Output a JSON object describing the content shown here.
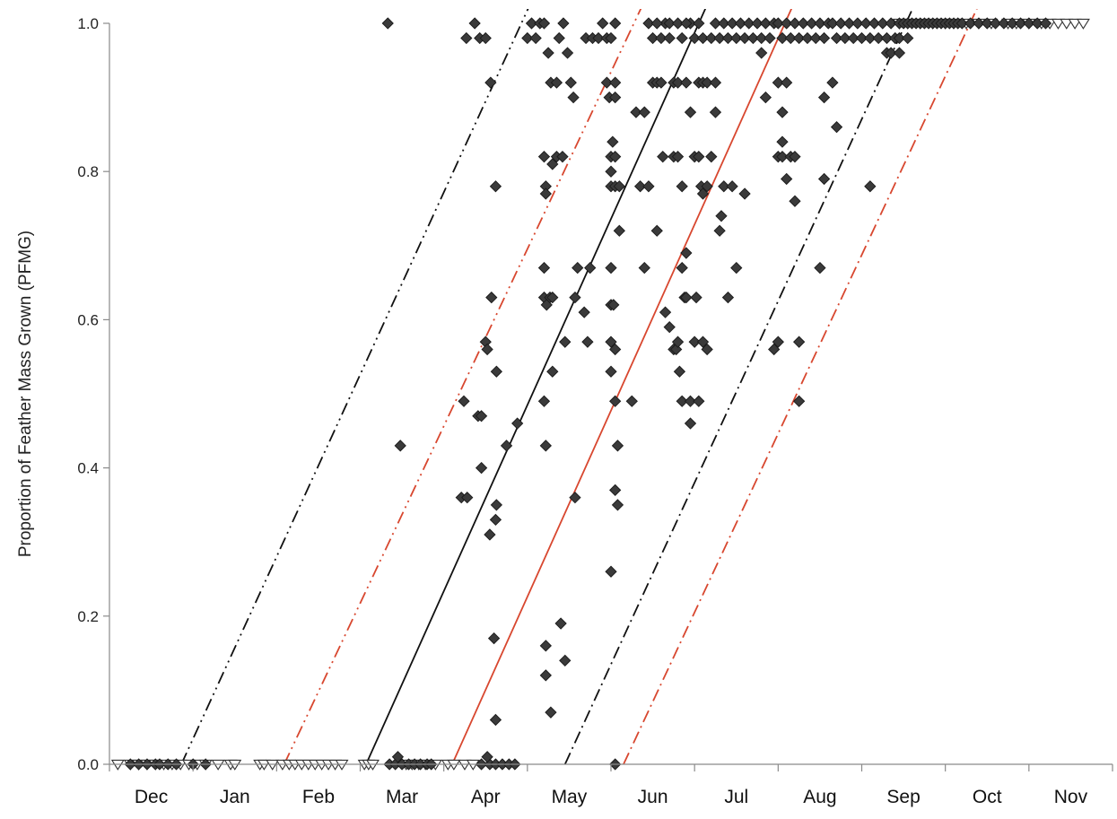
{
  "chart_data": {
    "type": "scatter",
    "title": "",
    "xlabel": "",
    "ylabel": "Proportion of Feather Mass Grown (PFMG)",
    "x_unit": "month",
    "month_range": [
      "Dec",
      "Nov"
    ],
    "categories": [
      "Dec",
      "Jan",
      "Feb",
      "Mar",
      "Apr",
      "May",
      "Jun",
      "Jul",
      "Aug",
      "Sep",
      "Oct",
      "Nov"
    ],
    "ylim": [
      0,
      1.0
    ],
    "yticks": [
      "0.0",
      "0.2",
      "0.4",
      "0.6",
      "0.8",
      "1.0"
    ],
    "grid": false,
    "legend": "none",
    "colors": {
      "black_line": "#111111",
      "red_line": "#d8472f",
      "diamond_fill": "#3a3a3a",
      "triangle_fill": "#ffffff",
      "axis": "#8a8a8a"
    },
    "lines": [
      {
        "color": "black",
        "style": "solid",
        "x": [
          3.07,
          7.17
        ],
        "y": [
          0.0,
          1.03
        ]
      },
      {
        "color": "red",
        "style": "solid",
        "x": [
          4.1,
          8.2
        ],
        "y": [
          0.0,
          1.03
        ]
      },
      {
        "color": "black",
        "style": "dash-dot-dot",
        "x": [
          0.86,
          5.05
        ],
        "y": [
          0.0,
          1.03
        ]
      },
      {
        "color": "red",
        "style": "dash-dot-dot",
        "x": [
          2.09,
          6.4
        ],
        "y": [
          0.0,
          1.03
        ]
      },
      {
        "color": "black",
        "style": "dash-dot",
        "x": [
          5.45,
          9.65
        ],
        "y": [
          0.0,
          1.03
        ]
      },
      {
        "color": "red",
        "style": "dash-dot",
        "x": [
          6.15,
          10.42
        ],
        "y": [
          0.0,
          1.03
        ]
      }
    ],
    "triangles_y0": [
      0.1,
      0.25,
      0.35,
      0.45,
      0.55,
      0.65,
      0.75,
      0.85,
      0.95,
      1.05,
      1.15,
      1.3,
      1.45,
      1.5,
      1.8,
      1.85,
      1.95,
      2.07,
      2.15,
      2.22,
      2.3,
      2.38,
      2.46,
      2.54,
      2.62,
      2.7,
      2.78,
      3.05,
      3.1,
      3.15,
      3.55,
      3.62,
      3.7,
      3.78,
      3.9,
      4.05,
      4.12,
      4.25,
      4.35
    ],
    "triangles_y1": [
      9.45,
      9.55,
      9.7,
      9.85,
      10.0,
      10.1,
      10.25,
      10.4,
      10.55,
      10.75,
      10.85,
      11.0,
      11.15,
      11.25,
      11.35,
      11.45,
      11.55,
      11.65
    ],
    "diamonds": [
      {
        "x": 0.25,
        "y": 0
      },
      {
        "x": 0.35,
        "y": 0
      },
      {
        "x": 0.45,
        "y": 0
      },
      {
        "x": 0.55,
        "y": 0
      },
      {
        "x": 0.6,
        "y": 0
      },
      {
        "x": 0.7,
        "y": 0
      },
      {
        "x": 0.8,
        "y": 0
      },
      {
        "x": 1.0,
        "y": 0
      },
      {
        "x": 1.15,
        "y": 0
      },
      {
        "x": 3.35,
        "y": 0
      },
      {
        "x": 3.42,
        "y": 0
      },
      {
        "x": 3.5,
        "y": 0
      },
      {
        "x": 3.58,
        "y": 0
      },
      {
        "x": 3.65,
        "y": 0
      },
      {
        "x": 3.72,
        "y": 0
      },
      {
        "x": 3.8,
        "y": 0
      },
      {
        "x": 3.85,
        "y": 0
      },
      {
        "x": 3.45,
        "y": 0.01
      },
      {
        "x": 4.45,
        "y": 0
      },
      {
        "x": 4.55,
        "y": 0
      },
      {
        "x": 4.62,
        "y": 0
      },
      {
        "x": 4.7,
        "y": 0
      },
      {
        "x": 4.78,
        "y": 0
      },
      {
        "x": 4.85,
        "y": 0
      },
      {
        "x": 4.52,
        "y": 0.01
      },
      {
        "x": 6.05,
        "y": 0
      },
      {
        "x": 3.33,
        "y": 1.0
      },
      {
        "x": 3.48,
        "y": 0.43
      },
      {
        "x": 4.21,
        "y": 0.36
      },
      {
        "x": 4.28,
        "y": 0.36
      },
      {
        "x": 4.24,
        "y": 0.49
      },
      {
        "x": 4.41,
        "y": 0.47
      },
      {
        "x": 4.45,
        "y": 0.47
      },
      {
        "x": 4.45,
        "y": 0.4
      },
      {
        "x": 4.55,
        "y": 0.31
      },
      {
        "x": 4.62,
        "y": 0.33
      },
      {
        "x": 4.63,
        "y": 0.35
      },
      {
        "x": 4.6,
        "y": 0.17
      },
      {
        "x": 4.62,
        "y": 0.06
      },
      {
        "x": 4.5,
        "y": 0.57
      },
      {
        "x": 4.52,
        "y": 0.56
      },
      {
        "x": 4.57,
        "y": 0.63
      },
      {
        "x": 4.63,
        "y": 0.53
      },
      {
        "x": 4.27,
        "y": 0.98
      },
      {
        "x": 4.37,
        "y": 1.0
      },
      {
        "x": 4.43,
        "y": 0.98
      },
      {
        "x": 4.5,
        "y": 0.98
      },
      {
        "x": 4.56,
        "y": 0.92
      },
      {
        "x": 4.62,
        "y": 0.78
      },
      {
        "x": 4.75,
        "y": 0.43
      },
      {
        "x": 4.88,
        "y": 0.46
      },
      {
        "x": 5.0,
        "y": 0.98
      },
      {
        "x": 5.05,
        "y": 1.0
      },
      {
        "x": 5.1,
        "y": 0.98
      },
      {
        "x": 5.15,
        "y": 1.0
      },
      {
        "x": 5.2,
        "y": 1.0
      },
      {
        "x": 5.25,
        "y": 0.96
      },
      {
        "x": 5.28,
        "y": 0.92
      },
      {
        "x": 5.35,
        "y": 0.92
      },
      {
        "x": 5.38,
        "y": 0.98
      },
      {
        "x": 5.43,
        "y": 1.0
      },
      {
        "x": 5.48,
        "y": 0.96
      },
      {
        "x": 5.52,
        "y": 0.92
      },
      {
        "x": 5.55,
        "y": 0.9
      },
      {
        "x": 5.2,
        "y": 0.82
      },
      {
        "x": 5.3,
        "y": 0.81
      },
      {
        "x": 5.35,
        "y": 0.82
      },
      {
        "x": 5.42,
        "y": 0.82
      },
      {
        "x": 5.22,
        "y": 0.78
      },
      {
        "x": 5.22,
        "y": 0.77
      },
      {
        "x": 5.2,
        "y": 0.67
      },
      {
        "x": 5.2,
        "y": 0.63
      },
      {
        "x": 5.23,
        "y": 0.62
      },
      {
        "x": 5.27,
        "y": 0.63
      },
      {
        "x": 5.3,
        "y": 0.63
      },
      {
        "x": 5.2,
        "y": 0.49
      },
      {
        "x": 5.22,
        "y": 0.43
      },
      {
        "x": 5.3,
        "y": 0.53
      },
      {
        "x": 5.45,
        "y": 0.57
      },
      {
        "x": 5.57,
        "y": 0.63
      },
      {
        "x": 5.6,
        "y": 0.67
      },
      {
        "x": 5.75,
        "y": 0.67
      },
      {
        "x": 5.72,
        "y": 0.57
      },
      {
        "x": 5.68,
        "y": 0.61
      },
      {
        "x": 5.57,
        "y": 0.36
      },
      {
        "x": 5.4,
        "y": 0.19
      },
      {
        "x": 5.22,
        "y": 0.16
      },
      {
        "x": 5.22,
        "y": 0.12
      },
      {
        "x": 5.28,
        "y": 0.07
      },
      {
        "x": 5.45,
        "y": 0.14
      },
      {
        "x": 5.7,
        "y": 0.98
      },
      {
        "x": 5.78,
        "y": 0.98
      },
      {
        "x": 5.85,
        "y": 0.98
      },
      {
        "x": 5.9,
        "y": 1.0
      },
      {
        "x": 5.95,
        "y": 0.98
      },
      {
        "x": 5.95,
        "y": 0.92
      },
      {
        "x": 5.98,
        "y": 0.9
      },
      {
        "x": 6.0,
        "y": 0.98
      },
      {
        "x": 6.05,
        "y": 1.0
      },
      {
        "x": 6.05,
        "y": 0.92
      },
      {
        "x": 6.05,
        "y": 0.9
      },
      {
        "x": 6.02,
        "y": 0.84
      },
      {
        "x": 6.0,
        "y": 0.82
      },
      {
        "x": 6.05,
        "y": 0.82
      },
      {
        "x": 6.0,
        "y": 0.8
      },
      {
        "x": 6.0,
        "y": 0.78
      },
      {
        "x": 6.05,
        "y": 0.78
      },
      {
        "x": 6.1,
        "y": 0.78
      },
      {
        "x": 6.1,
        "y": 0.72
      },
      {
        "x": 6.0,
        "y": 0.67
      },
      {
        "x": 6.0,
        "y": 0.62
      },
      {
        "x": 6.03,
        "y": 0.62
      },
      {
        "x": 6.0,
        "y": 0.57
      },
      {
        "x": 6.05,
        "y": 0.56
      },
      {
        "x": 6.0,
        "y": 0.53
      },
      {
        "x": 6.05,
        "y": 0.49
      },
      {
        "x": 6.08,
        "y": 0.43
      },
      {
        "x": 6.05,
        "y": 0.37
      },
      {
        "x": 6.08,
        "y": 0.35
      },
      {
        "x": 6.0,
        "y": 0.26
      },
      {
        "x": 6.25,
        "y": 0.49
      },
      {
        "x": 6.3,
        "y": 0.88
      },
      {
        "x": 6.4,
        "y": 0.88
      },
      {
        "x": 6.35,
        "y": 0.78
      },
      {
        "x": 6.45,
        "y": 0.78
      },
      {
        "x": 6.4,
        "y": 0.67
      },
      {
        "x": 6.55,
        "y": 0.72
      },
      {
        "x": 6.62,
        "y": 0.82
      },
      {
        "x": 6.5,
        "y": 0.98
      },
      {
        "x": 6.5,
        "y": 0.92
      },
      {
        "x": 6.55,
        "y": 0.92
      },
      {
        "x": 6.6,
        "y": 0.98
      },
      {
        "x": 6.6,
        "y": 0.92
      },
      {
        "x": 6.65,
        "y": 1.0
      },
      {
        "x": 6.7,
        "y": 0.98
      },
      {
        "x": 6.75,
        "y": 0.92
      },
      {
        "x": 6.8,
        "y": 0.92
      },
      {
        "x": 6.85,
        "y": 0.98
      },
      {
        "x": 6.9,
        "y": 0.92
      },
      {
        "x": 6.95,
        "y": 1.0
      },
      {
        "x": 7.0,
        "y": 0.98
      },
      {
        "x": 7.05,
        "y": 0.92
      },
      {
        "x": 7.1,
        "y": 0.92
      },
      {
        "x": 7.15,
        "y": 0.92
      },
      {
        "x": 7.25,
        "y": 0.92
      },
      {
        "x": 6.45,
        "y": 1.0
      },
      {
        "x": 6.55,
        "y": 1.0
      },
      {
        "x": 6.7,
        "y": 1.0
      },
      {
        "x": 6.8,
        "y": 1.0
      },
      {
        "x": 6.9,
        "y": 1.0
      },
      {
        "x": 7.05,
        "y": 1.0
      },
      {
        "x": 7.1,
        "y": 0.98
      },
      {
        "x": 7.2,
        "y": 0.98
      },
      {
        "x": 7.25,
        "y": 1.0
      },
      {
        "x": 7.3,
        "y": 0.98
      },
      {
        "x": 6.65,
        "y": 0.61
      },
      {
        "x": 6.7,
        "y": 0.59
      },
      {
        "x": 6.75,
        "y": 0.56
      },
      {
        "x": 6.78,
        "y": 0.56
      },
      {
        "x": 6.8,
        "y": 0.57
      },
      {
        "x": 6.82,
        "y": 0.53
      },
      {
        "x": 6.85,
        "y": 0.49
      },
      {
        "x": 6.88,
        "y": 0.63
      },
      {
        "x": 6.9,
        "y": 0.63
      },
      {
        "x": 6.95,
        "y": 0.49
      },
      {
        "x": 6.95,
        "y": 0.46
      },
      {
        "x": 7.0,
        "y": 0.57
      },
      {
        "x": 7.02,
        "y": 0.63
      },
      {
        "x": 7.05,
        "y": 0.49
      },
      {
        "x": 7.1,
        "y": 0.57
      },
      {
        "x": 7.15,
        "y": 0.56
      },
      {
        "x": 6.75,
        "y": 0.82
      },
      {
        "x": 6.8,
        "y": 0.82
      },
      {
        "x": 6.85,
        "y": 0.78
      },
      {
        "x": 6.85,
        "y": 0.67
      },
      {
        "x": 6.9,
        "y": 0.69
      },
      {
        "x": 6.95,
        "y": 0.88
      },
      {
        "x": 7.0,
        "y": 0.82
      },
      {
        "x": 7.05,
        "y": 0.82
      },
      {
        "x": 7.08,
        "y": 0.78
      },
      {
        "x": 7.1,
        "y": 0.77
      },
      {
        "x": 7.15,
        "y": 0.78
      },
      {
        "x": 7.2,
        "y": 0.82
      },
      {
        "x": 7.25,
        "y": 0.88
      },
      {
        "x": 7.3,
        "y": 0.72
      },
      {
        "x": 7.32,
        "y": 0.74
      },
      {
        "x": 7.35,
        "y": 0.78
      },
      {
        "x": 7.4,
        "y": 0.63
      },
      {
        "x": 7.45,
        "y": 0.78
      },
      {
        "x": 7.5,
        "y": 0.67
      },
      {
        "x": 7.35,
        "y": 1.0
      },
      {
        "x": 7.4,
        "y": 0.98
      },
      {
        "x": 7.45,
        "y": 1.0
      },
      {
        "x": 7.5,
        "y": 0.98
      },
      {
        "x": 7.55,
        "y": 1.0
      },
      {
        "x": 7.6,
        "y": 0.98
      },
      {
        "x": 7.65,
        "y": 1.0
      },
      {
        "x": 7.7,
        "y": 0.98
      },
      {
        "x": 7.75,
        "y": 1.0
      },
      {
        "x": 7.8,
        "y": 0.98
      },
      {
        "x": 7.85,
        "y": 1.0
      },
      {
        "x": 7.9,
        "y": 0.98
      },
      {
        "x": 7.95,
        "y": 1.0
      },
      {
        "x": 7.6,
        "y": 0.77
      },
      {
        "x": 7.8,
        "y": 0.96
      },
      {
        "x": 7.85,
        "y": 0.9
      },
      {
        "x": 7.95,
        "y": 0.56
      },
      {
        "x": 8.0,
        "y": 0.57
      },
      {
        "x": 8.0,
        "y": 0.82
      },
      {
        "x": 8.05,
        "y": 0.82
      },
      {
        "x": 8.05,
        "y": 0.84
      },
      {
        "x": 8.1,
        "y": 0.79
      },
      {
        "x": 8.15,
        "y": 0.82
      },
      {
        "x": 8.2,
        "y": 0.82
      },
      {
        "x": 8.2,
        "y": 0.76
      },
      {
        "x": 8.0,
        "y": 0.92
      },
      {
        "x": 8.05,
        "y": 0.88
      },
      {
        "x": 8.1,
        "y": 0.92
      },
      {
        "x": 8.25,
        "y": 0.57
      },
      {
        "x": 8.25,
        "y": 0.49
      },
      {
        "x": 8.0,
        "y": 1.0
      },
      {
        "x": 8.05,
        "y": 0.98
      },
      {
        "x": 8.1,
        "y": 1.0
      },
      {
        "x": 8.15,
        "y": 0.98
      },
      {
        "x": 8.2,
        "y": 1.0
      },
      {
        "x": 8.25,
        "y": 0.98
      },
      {
        "x": 8.3,
        "y": 1.0
      },
      {
        "x": 8.35,
        "y": 0.98
      },
      {
        "x": 8.4,
        "y": 1.0
      },
      {
        "x": 8.45,
        "y": 0.98
      },
      {
        "x": 8.5,
        "y": 1.0
      },
      {
        "x": 8.55,
        "y": 0.98
      },
      {
        "x": 8.6,
        "y": 1.0
      },
      {
        "x": 8.5,
        "y": 0.67
      },
      {
        "x": 8.55,
        "y": 0.79
      },
      {
        "x": 8.55,
        "y": 0.9
      },
      {
        "x": 8.65,
        "y": 0.92
      },
      {
        "x": 8.7,
        "y": 0.86
      },
      {
        "x": 8.65,
        "y": 1.0
      },
      {
        "x": 8.7,
        "y": 0.98
      },
      {
        "x": 8.75,
        "y": 1.0
      },
      {
        "x": 8.8,
        "y": 0.98
      },
      {
        "x": 8.85,
        "y": 1.0
      },
      {
        "x": 8.9,
        "y": 0.98
      },
      {
        "x": 8.95,
        "y": 1.0
      },
      {
        "x": 9.0,
        "y": 0.98
      },
      {
        "x": 9.05,
        "y": 1.0
      },
      {
        "x": 9.1,
        "y": 0.98
      },
      {
        "x": 9.15,
        "y": 1.0
      },
      {
        "x": 9.2,
        "y": 0.98
      },
      {
        "x": 9.25,
        "y": 1.0
      },
      {
        "x": 9.3,
        "y": 0.98
      },
      {
        "x": 9.35,
        "y": 1.0
      },
      {
        "x": 9.4,
        "y": 0.98
      },
      {
        "x": 9.45,
        "y": 1.0
      },
      {
        "x": 9.3,
        "y": 0.96
      },
      {
        "x": 9.35,
        "y": 0.96
      },
      {
        "x": 9.45,
        "y": 0.96
      },
      {
        "x": 9.45,
        "y": 0.98
      },
      {
        "x": 9.5,
        "y": 1.0
      },
      {
        "x": 9.55,
        "y": 0.98
      },
      {
        "x": 9.1,
        "y": 0.78
      },
      {
        "x": 9.55,
        "y": 1.0
      },
      {
        "x": 9.6,
        "y": 1.0
      },
      {
        "x": 9.65,
        "y": 1.0
      },
      {
        "x": 9.7,
        "y": 1.0
      },
      {
        "x": 9.75,
        "y": 1.0
      },
      {
        "x": 9.8,
        "y": 1.0
      },
      {
        "x": 9.85,
        "y": 1.0
      },
      {
        "x": 9.9,
        "y": 1.0
      },
      {
        "x": 9.95,
        "y": 1.0
      },
      {
        "x": 10.0,
        "y": 1.0
      },
      {
        "x": 10.05,
        "y": 1.0
      },
      {
        "x": 10.1,
        "y": 1.0
      },
      {
        "x": 10.15,
        "y": 1.0
      },
      {
        "x": 10.2,
        "y": 1.0
      },
      {
        "x": 10.3,
        "y": 1.0
      },
      {
        "x": 10.4,
        "y": 1.0
      },
      {
        "x": 10.5,
        "y": 1.0
      },
      {
        "x": 10.6,
        "y": 1.0
      },
      {
        "x": 10.7,
        "y": 1.0
      },
      {
        "x": 10.8,
        "y": 1.0
      },
      {
        "x": 10.9,
        "y": 1.0
      },
      {
        "x": 11.0,
        "y": 1.0
      },
      {
        "x": 11.1,
        "y": 1.0
      },
      {
        "x": 11.2,
        "y": 1.0
      }
    ]
  }
}
